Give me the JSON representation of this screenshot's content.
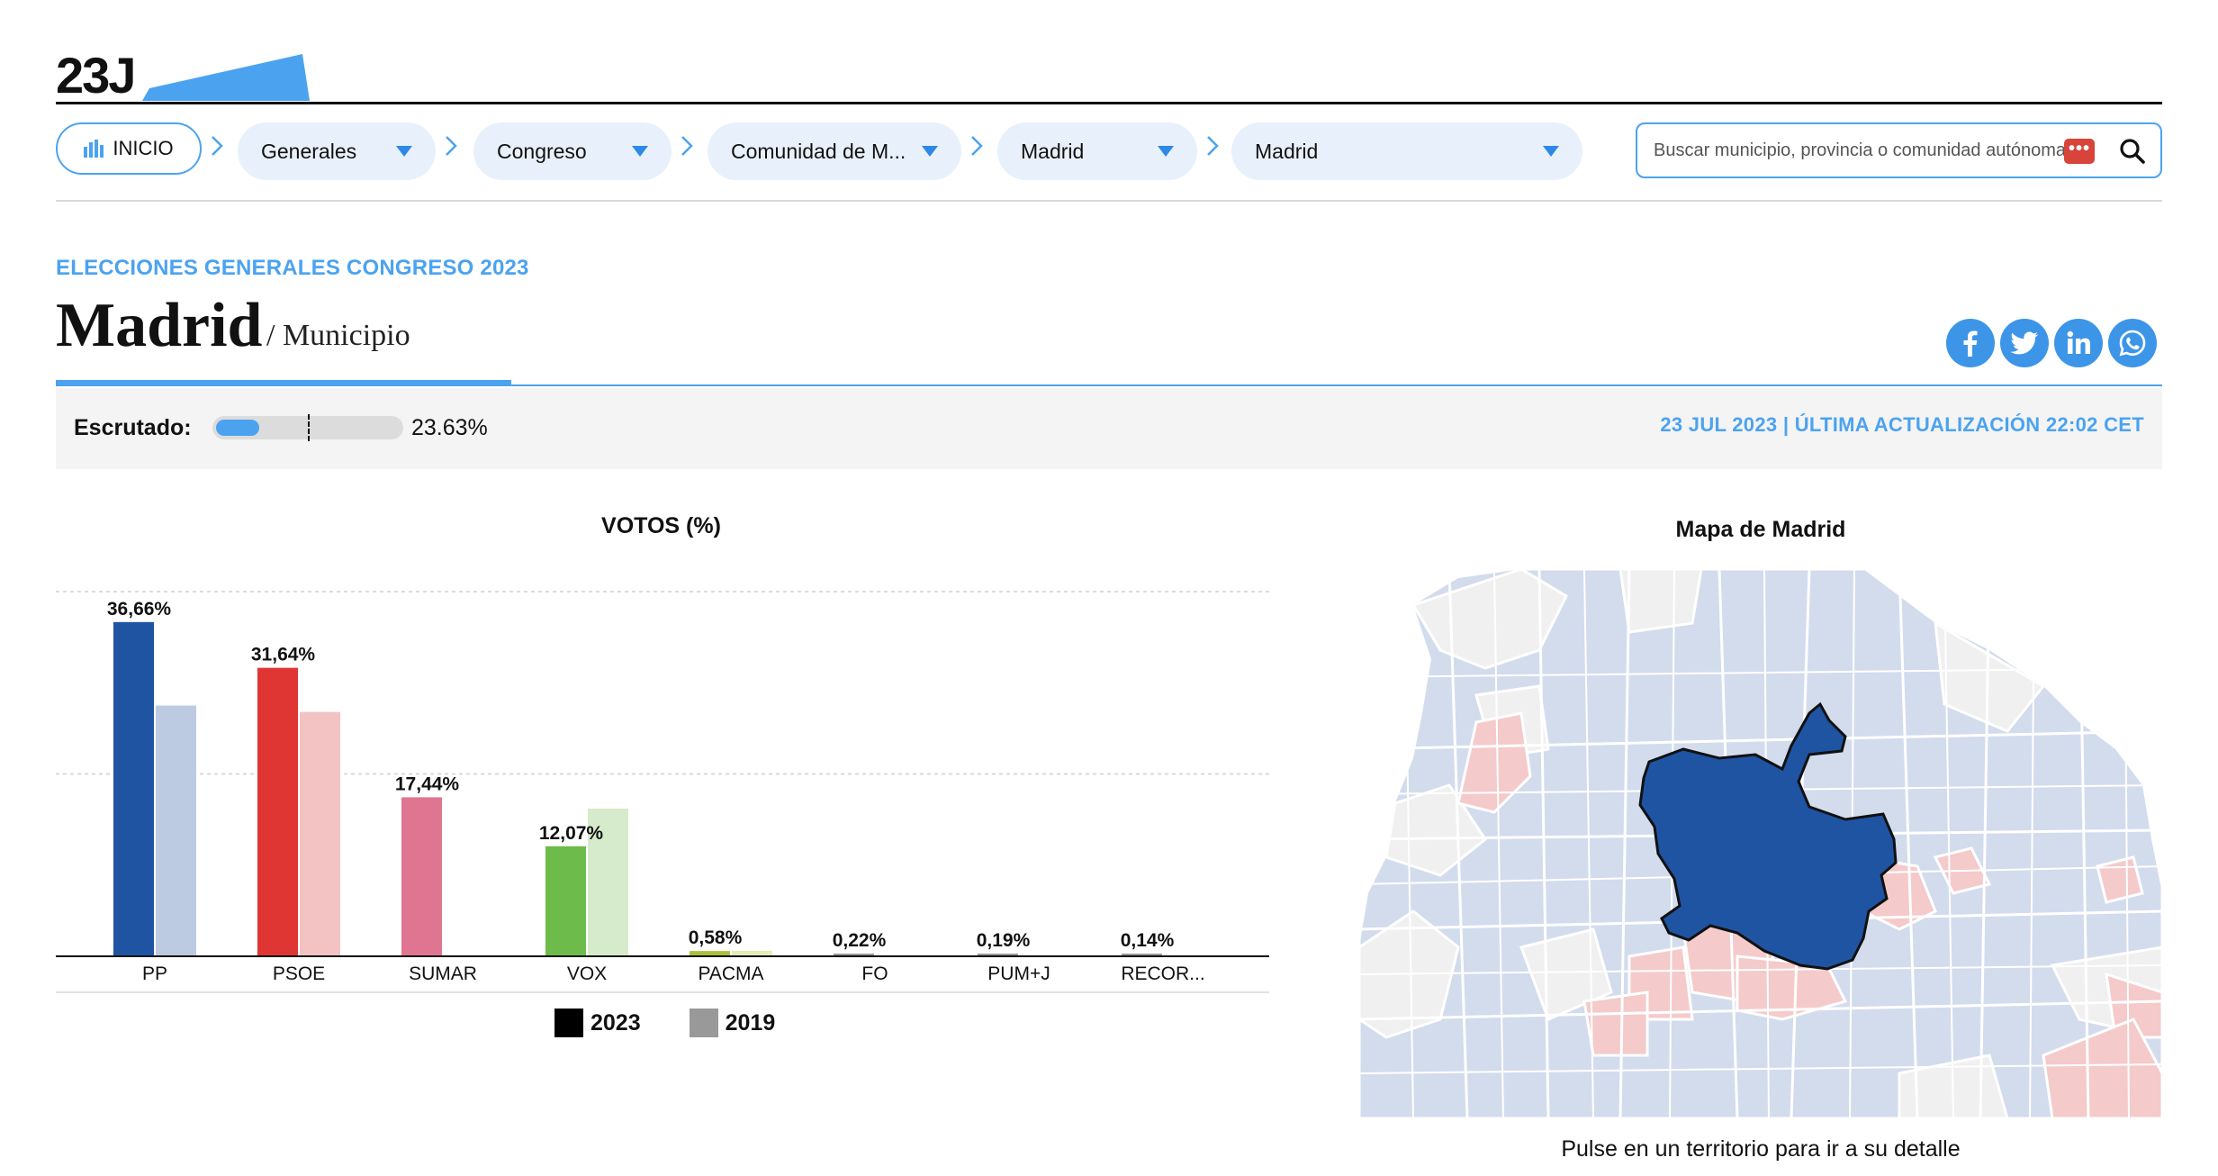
{
  "header": {
    "logo_text": "23J"
  },
  "nav": {
    "home_label": "INICIO",
    "dropdowns": [
      {
        "label": "Generales"
      },
      {
        "label": "Congreso"
      },
      {
        "label": "Comunidad de M..."
      },
      {
        "label": "Madrid"
      },
      {
        "label": "Madrid"
      }
    ],
    "search_placeholder": "Buscar municipio, provincia o comunidad autónoma",
    "search_overlay": "•••"
  },
  "page": {
    "kicker": "ELECCIONES GENERALES CONGRESO 2023",
    "title": "Madrid",
    "subtitle": "/ Municipio",
    "social": [
      "facebook-icon",
      "twitter-icon",
      "linkedin-icon",
      "whatsapp-icon"
    ]
  },
  "scrutiny": {
    "label": "Escrutado:",
    "value_text": "23.63%",
    "fraction": 0.2363,
    "updated": "23 JUL 2023 | ÚLTIMA ACTUALIZACIÓN 22:02 CET"
  },
  "chart_data": {
    "type": "bar",
    "title": "VOTOS (%)",
    "categories": [
      "PP",
      "PSOE",
      "SUMAR",
      "VOX",
      "PACMA",
      "FO",
      "PUM+J",
      "RECOR..."
    ],
    "series": [
      {
        "name": "2023",
        "values": [
          36.66,
          31.64,
          17.44,
          12.07,
          0.58,
          0.22,
          0.19,
          0.14
        ]
      },
      {
        "name": "2019",
        "values": [
          27.5,
          26.8,
          0,
          16.2,
          0.6,
          0,
          0,
          0
        ]
      }
    ],
    "data_labels": [
      "36,66%",
      "31,64%",
      "17,44%",
      "12,07%",
      "0,58%",
      "0,22%",
      "0,19%",
      "0,14%"
    ],
    "colors_2023": [
      "#1f54a3",
      "#df3533",
      "#e07591",
      "#6dbb4a",
      "#a8c03b",
      "#999999",
      "#999999",
      "#999999"
    ],
    "colors_2019": [
      "#bccbe2",
      "#f3c2c2",
      "#f5d0da",
      "#d5ebcb",
      "#e2edb8",
      "#dddddd",
      "#dddddd",
      "#dddddd"
    ],
    "ylim": [
      0,
      40
    ],
    "gridlines": [
      20,
      40
    ],
    "legend": [
      {
        "label": "2023",
        "color": "#000000"
      },
      {
        "label": "2019",
        "color": "#999999"
      }
    ],
    "legend_position": "bottom"
  },
  "map": {
    "title": "Mapa de Madrid",
    "hint": "Pulse en un territorio para ir a su detalle",
    "colors": {
      "highlight": "#1f54a3",
      "pp": "#d3dced",
      "psoe": "#f4caca",
      "other": "#f0f0f0"
    }
  }
}
